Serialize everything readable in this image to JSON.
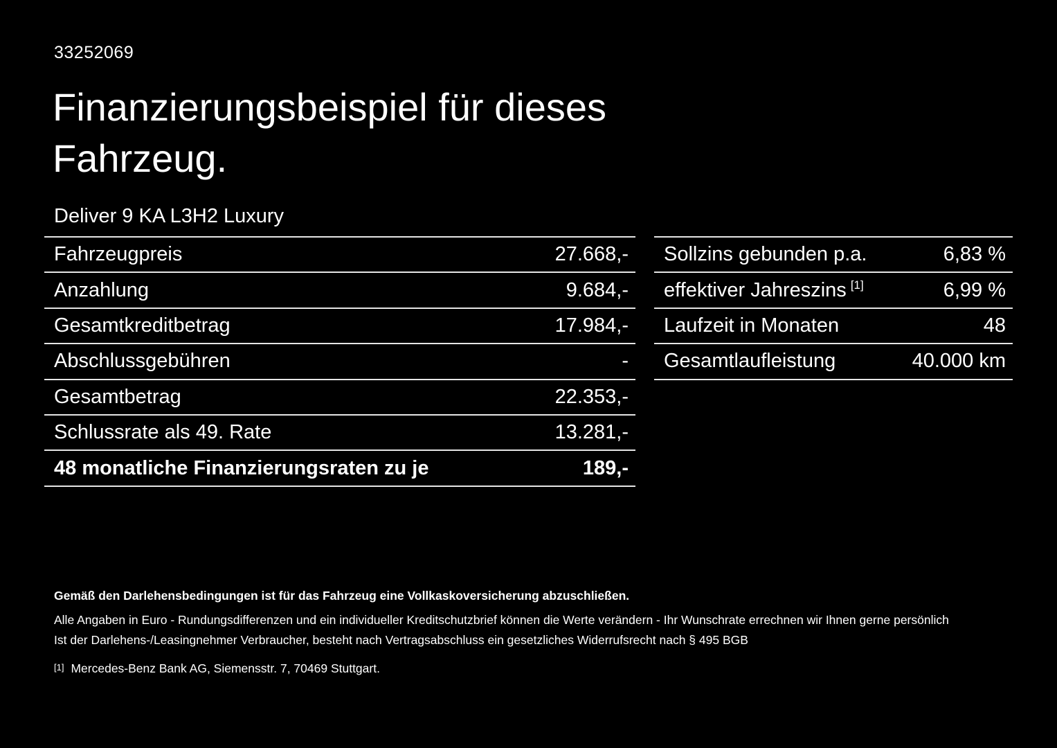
{
  "page": {
    "reference_number": "33252069",
    "title": "Finanzierungsbeispiel für dieses Fahrzeug.",
    "vehicle_model": "Deliver 9 KA L3H2 Luxury"
  },
  "finance_table": {
    "rows": [
      {
        "label": "Fahrzeugpreis",
        "value": "27.668,-"
      },
      {
        "label": "Anzahlung",
        "value": "9.684,-"
      },
      {
        "label": "Gesamtkreditbetrag",
        "value": "17.984,-"
      },
      {
        "label": "Abschlussgebühren",
        "value": "-"
      },
      {
        "label": "Gesamtbetrag",
        "value": "22.353,-"
      },
      {
        "label": "Schlussrate als 49. Rate",
        "value": "13.281,-"
      },
      {
        "label": "48 monatliche Finanzierungsraten zu je",
        "value": "189,-"
      }
    ]
  },
  "conditions_table": {
    "rows": [
      {
        "label": "Sollzins gebunden p.a.",
        "value": "6,83 %"
      },
      {
        "label": "effektiver Jahreszins",
        "footnote": "[1]",
        "value": "6,99 %"
      },
      {
        "label": "Laufzeit in Monaten",
        "value": "48"
      },
      {
        "label": "Gesamtlaufleistung",
        "value": "40.000 km"
      }
    ]
  },
  "footer": {
    "line1": "Gemäß den Darlehensbedingungen ist für das Fahrzeug eine Vollkaskoversicherung abzuschließen.",
    "line2": "Alle Angaben in Euro - Rundungsdifferenzen und ein individueller Kreditschutzbrief können die Werte verändern - Ihr Wunschrate errechnen wir Ihnen gerne persönlich",
    "line3": "Ist der Darlehens-/Leasingnehmer Verbraucher, besteht nach Vertragsabschluss ein gesetzliches Widerrufsrecht nach § 495 BGB",
    "footnote_marker": "[1]",
    "footnote_text": "Mercedes-Benz Bank AG, Siemensstr. 7, 70469 Stuttgart."
  }
}
